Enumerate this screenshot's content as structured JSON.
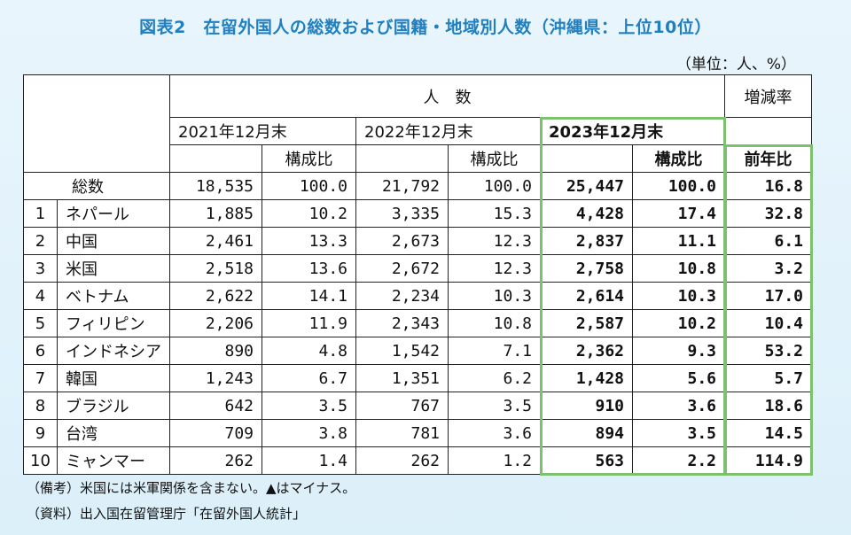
{
  "title": "図表2　在留外国人の総数および国籍・地域別人数（沖縄県：上位10位）",
  "unit": "（単位：人、%）",
  "header": {
    "people": "人　数",
    "change": "増減率",
    "y2021": "2021年12月末",
    "y2022": "2022年12月末",
    "y2023": "2023年12月末",
    "ratio": "構成比",
    "yoy": "前年比"
  },
  "total": {
    "label": "総数",
    "v2021": "18,535",
    "r2021": "100.0",
    "v2022": "21,792",
    "r2022": "100.0",
    "v2023": "25,447",
    "r2023": "100.0",
    "yoy": "16.8"
  },
  "rows": [
    {
      "rank": "1",
      "name": "ネパール",
      "v2021": "1,885",
      "r2021": "10.2",
      "v2022": "3,335",
      "r2022": "15.3",
      "v2023": "4,428",
      "r2023": "17.4",
      "yoy": "32.8"
    },
    {
      "rank": "2",
      "name": "中国",
      "v2021": "2,461",
      "r2021": "13.3",
      "v2022": "2,673",
      "r2022": "12.3",
      "v2023": "2,837",
      "r2023": "11.1",
      "yoy": "6.1"
    },
    {
      "rank": "3",
      "name": "米国",
      "v2021": "2,518",
      "r2021": "13.6",
      "v2022": "2,672",
      "r2022": "12.3",
      "v2023": "2,758",
      "r2023": "10.8",
      "yoy": "3.2"
    },
    {
      "rank": "4",
      "name": "ベトナム",
      "v2021": "2,622",
      "r2021": "14.1",
      "v2022": "2,234",
      "r2022": "10.3",
      "v2023": "2,614",
      "r2023": "10.3",
      "yoy": "17.0"
    },
    {
      "rank": "5",
      "name": "フィリピン",
      "v2021": "2,206",
      "r2021": "11.9",
      "v2022": "2,343",
      "r2022": "10.8",
      "v2023": "2,587",
      "r2023": "10.2",
      "yoy": "10.4"
    },
    {
      "rank": "6",
      "name": "インドネシア",
      "v2021": "890",
      "r2021": "4.8",
      "v2022": "1,542",
      "r2022": "7.1",
      "v2023": "2,362",
      "r2023": "9.3",
      "yoy": "53.2"
    },
    {
      "rank": "7",
      "name": "韓国",
      "v2021": "1,243",
      "r2021": "6.7",
      "v2022": "1,351",
      "r2022": "6.2",
      "v2023": "1,428",
      "r2023": "5.6",
      "yoy": "5.7"
    },
    {
      "rank": "8",
      "name": "ブラジル",
      "v2021": "642",
      "r2021": "3.5",
      "v2022": "767",
      "r2022": "3.5",
      "v2023": "910",
      "r2023": "3.6",
      "yoy": "18.6"
    },
    {
      "rank": "9",
      "name": "台湾",
      "v2021": "709",
      "r2021": "3.8",
      "v2022": "781",
      "r2022": "3.6",
      "v2023": "894",
      "r2023": "3.5",
      "yoy": "14.5"
    },
    {
      "rank": "10",
      "name": "ミャンマー",
      "v2021": "262",
      "r2021": "1.4",
      "v2022": "262",
      "r2022": "1.2",
      "v2023": "563",
      "r2023": "2.2",
      "yoy": "114.9"
    }
  ],
  "notes": {
    "note1": "（備考）米国には米軍関係を含まない。▲はマイナス。",
    "note2": "（資料）出入国在留管理庁「在留外国人統計」"
  }
}
